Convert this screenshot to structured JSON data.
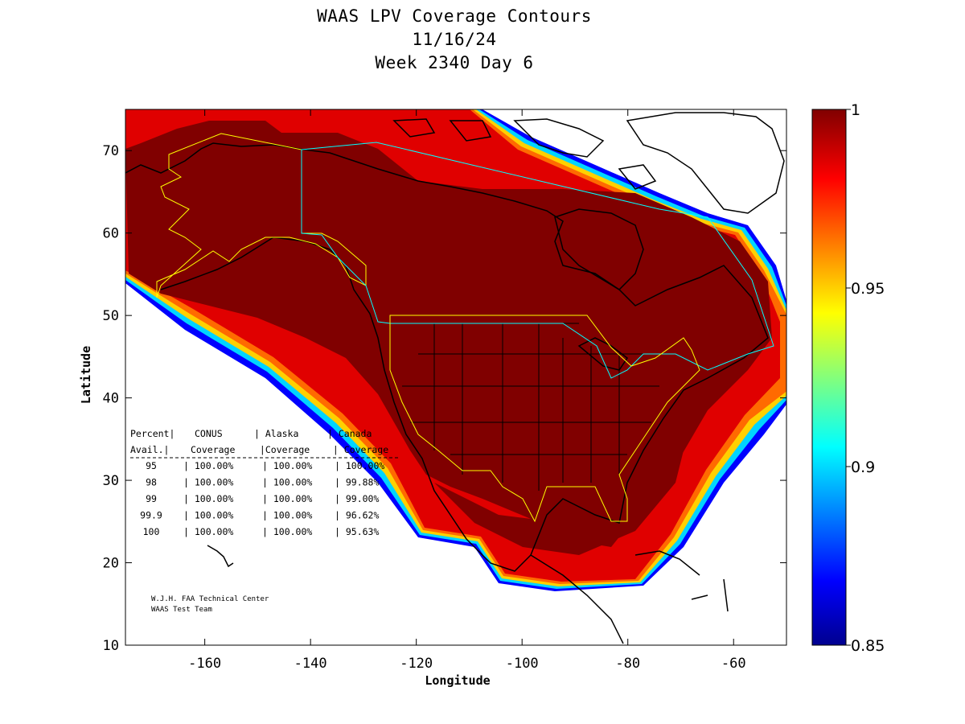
{
  "title": {
    "line1": "WAAS LPV Coverage Contours",
    "line2": "11/16/24",
    "line3": "Week 2340 Day 6"
  },
  "axes": {
    "xlabel": "Longitude",
    "ylabel": "Latitude",
    "xlim": [
      -175,
      -50
    ],
    "ylim": [
      10,
      75
    ],
    "xticks": [
      -160,
      -140,
      -120,
      -100,
      -80,
      -60
    ],
    "yticks": [
      10,
      20,
      30,
      40,
      50,
      60,
      70
    ]
  },
  "colorbar": {
    "min": 0.85,
    "max": 1,
    "ticks": [
      {
        "value": 1,
        "label": "1"
      },
      {
        "value": 0.95,
        "label": "0.95"
      },
      {
        "value": 0.9,
        "label": "0.9"
      },
      {
        "value": 0.85,
        "label": "0.85"
      }
    ]
  },
  "table": {
    "header1": [
      "Percent|",
      "CONUS",
      "| Alaska",
      "|  Canada"
    ],
    "header2": [
      " Avail.|",
      "Coverage",
      " |Coverage",
      " | Coverage"
    ],
    "rows": [
      [
        "95",
        "| 100.00%",
        "| 100.00%",
        "| 100.00%"
      ],
      [
        "98",
        "| 100.00%",
        "| 100.00%",
        "| 99.88%"
      ],
      [
        "99",
        "| 100.00%",
        "| 100.00%",
        "| 99.00%"
      ],
      [
        "99.9",
        "| 100.00%",
        "| 100.00%",
        "| 96.62%"
      ],
      [
        "100",
        "| 100.00%",
        "| 100.00%",
        "| 95.63%"
      ]
    ]
  },
  "credit": {
    "line1": "W.J.H. FAA Technical Center",
    "line2": "WAAS Test Team"
  },
  "chart_data": {
    "type": "heatmap",
    "title": "WAAS LPV Coverage Contours",
    "subtitle": [
      "11/16/24",
      "Week 2340 Day 6"
    ],
    "xlabel": "Longitude",
    "ylabel": "Latitude",
    "xlim": [
      -175,
      -50
    ],
    "ylim": [
      10,
      75
    ],
    "colorscale": "jet",
    "zlim": [
      0.85,
      1
    ],
    "coverage_percent": {
      "levels": [
        "95",
        "98",
        "99",
        "99.9",
        "100"
      ],
      "series": [
        {
          "name": "CONUS",
          "values": [
            100.0,
            100.0,
            100.0,
            100.0,
            100.0
          ]
        },
        {
          "name": "Alaska",
          "values": [
            100.0,
            100.0,
            100.0,
            100.0,
            100.0
          ]
        },
        {
          "name": "Canada",
          "values": [
            100.0,
            99.88,
            99.0,
            96.62,
            95.63
          ]
        }
      ]
    }
  }
}
